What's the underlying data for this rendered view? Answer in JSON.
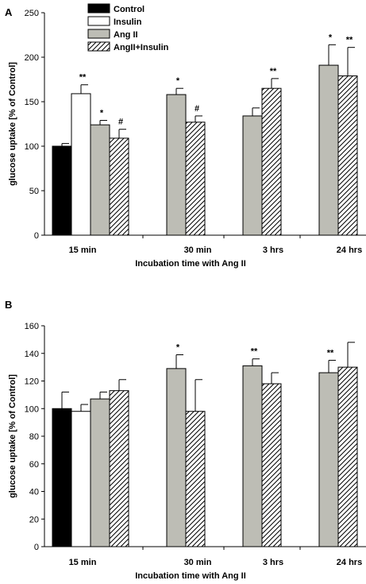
{
  "series_style": [
    {
      "fill": "#000000",
      "pattern": "none"
    },
    {
      "fill": "#ffffff",
      "pattern": "none"
    },
    {
      "fill": "#bdbdb5",
      "pattern": "none"
    },
    {
      "fill": "#ffffff",
      "pattern": "hatch"
    }
  ],
  "chart_data": [
    {
      "panel": "A",
      "type": "bar",
      "title": "",
      "xlabel": "Incubation time with Ang II",
      "ylabel": "glucose uptake [% of Control]",
      "ylim": [
        0,
        250
      ],
      "yticks": [
        0,
        50,
        100,
        150,
        200,
        250
      ],
      "categories": [
        "15 min",
        "30 min",
        "3 hrs",
        "24 hrs"
      ],
      "legend": {
        "placement": "top-left"
      },
      "series": [
        {
          "name": "Control",
          "values": [
            100,
            null,
            null,
            null
          ],
          "errors": [
            3,
            null,
            null,
            null
          ],
          "annotations": [
            "",
            "",
            "",
            ""
          ]
        },
        {
          "name": "Insulin",
          "values": [
            159,
            null,
            null,
            null
          ],
          "errors": [
            10,
            null,
            null,
            null
          ],
          "annotations": [
            "**",
            "",
            "",
            ""
          ]
        },
        {
          "name": "Ang II",
          "values": [
            124,
            158,
            134,
            191
          ],
          "errors": [
            5,
            7,
            9,
            23
          ],
          "annotations": [
            "*",
            "*",
            "",
            "*"
          ]
        },
        {
          "name": "AngII+Insulin",
          "values": [
            109,
            127,
            165,
            179
          ],
          "errors": [
            10,
            7,
            11,
            32
          ],
          "annotations": [
            "#",
            "#",
            "**",
            "**"
          ]
        }
      ]
    },
    {
      "panel": "B",
      "type": "bar",
      "title": "",
      "xlabel": "Incubation time with Ang II",
      "ylabel": "glucose uptake [% of Control]",
      "ylim": [
        0,
        160
      ],
      "yticks": [
        0,
        20,
        40,
        60,
        80,
        100,
        120,
        140,
        160
      ],
      "categories": [
        "15 min",
        "30 min",
        "3 hrs",
        "24 hrs"
      ],
      "series": [
        {
          "name": "Control",
          "values": [
            100,
            null,
            null,
            null
          ],
          "errors": [
            12,
            null,
            null,
            null
          ],
          "annotations": [
            "",
            "",
            "",
            ""
          ]
        },
        {
          "name": "Insulin",
          "values": [
            98,
            null,
            null,
            null
          ],
          "errors": [
            5,
            null,
            null,
            null
          ],
          "annotations": [
            "",
            "",
            "",
            ""
          ]
        },
        {
          "name": "Ang II",
          "values": [
            107,
            129,
            131,
            126
          ],
          "errors": [
            5,
            10,
            5,
            9
          ],
          "annotations": [
            "",
            "*",
            "**",
            "**"
          ]
        },
        {
          "name": "AngII+Insulin",
          "values": [
            113,
            98,
            118,
            130
          ],
          "errors": [
            8,
            23,
            8,
            18
          ],
          "annotations": [
            "",
            "",
            "",
            ""
          ]
        }
      ]
    }
  ]
}
